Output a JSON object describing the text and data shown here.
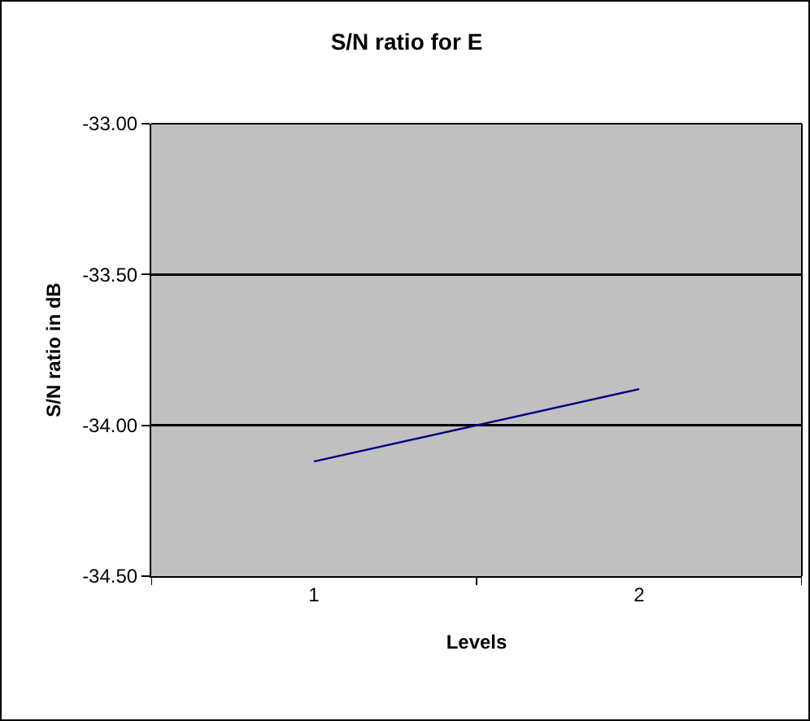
{
  "chart_data": {
    "type": "line",
    "title": "S/N ratio for E",
    "xlabel": "Levels",
    "ylabel": "S/N ratio in dB",
    "categories": [
      "1",
      "2"
    ],
    "series": [
      {
        "color": "#000080",
        "values": [
          -34.12,
          -33.88
        ]
      }
    ],
    "ylim": [
      -34.5,
      -33.0
    ],
    "yticks": [
      {
        "value": -34.5,
        "label": "-34.50"
      },
      {
        "value": -34.0,
        "label": "-34.00"
      },
      {
        "value": -33.5,
        "label": "-33.50"
      },
      {
        "value": -33.0,
        "label": "-33.00"
      }
    ],
    "grid": "y",
    "marker": "none",
    "line_style": "solid"
  }
}
